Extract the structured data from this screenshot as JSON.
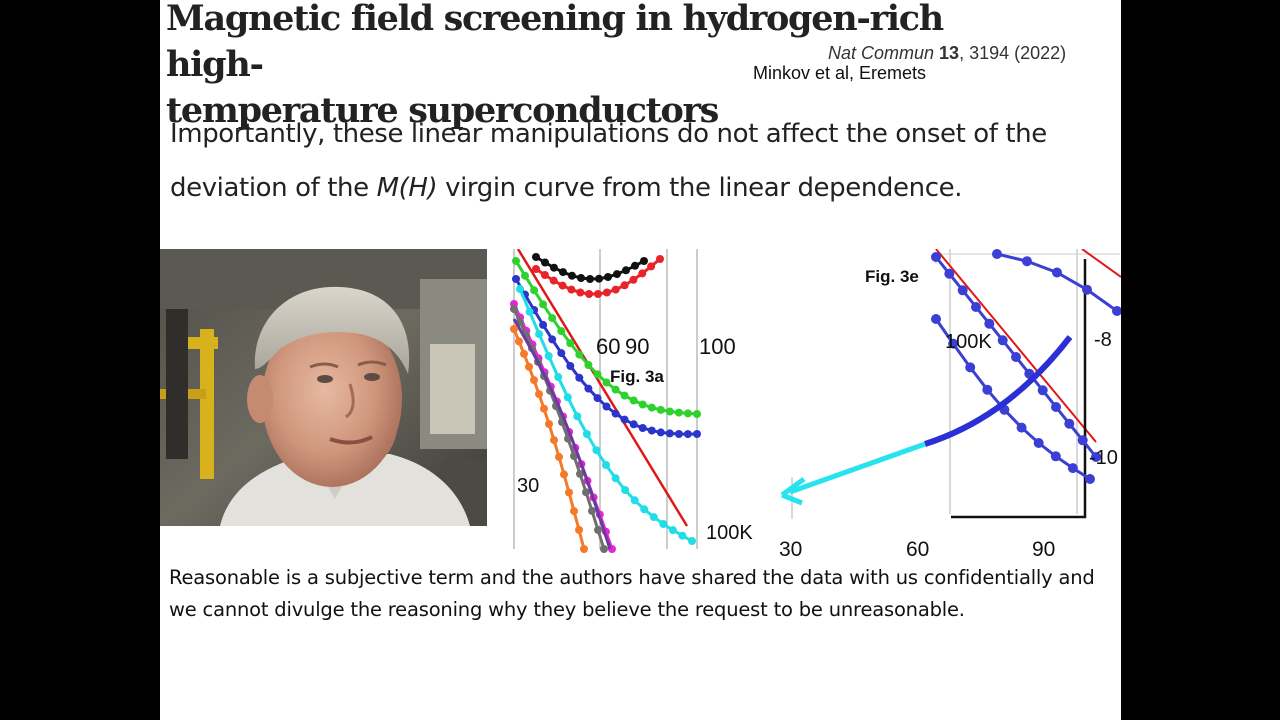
{
  "title": {
    "line1": "Magnetic field screening in hydrogen-rich high-",
    "line2": "temperature superconductors"
  },
  "citation": {
    "journal": "Nat Commun",
    "volume": "13",
    "rest": ", 3194 (2022)",
    "authors": "Minkov et al, Eremets"
  },
  "quote": {
    "part1": "Importantly, these linear manipulations do not affect the onset of the deviation of the ",
    "italic": "M(H)",
    "part2": " virgin curve from the linear dependence."
  },
  "photo": {
    "alt": "Portrait photo of an older man"
  },
  "figures": {
    "left": {
      "label": "Fig. 3a",
      "top_ticks": [
        "60",
        "90",
        "100"
      ],
      "side_label": "30",
      "curve_label": "100K"
    },
    "right": {
      "label": "Fig. 3e",
      "curve_label": "100K",
      "x_ticks": [
        "30",
        "60",
        "90"
      ],
      "y_ticks": [
        "-8",
        "-10"
      ]
    }
  },
  "statement": "Reasonable is a subjective term and the authors have shared the data with us confidentially and we cannot divulge the reasoning why they believe the request to be unreasonable.",
  "colors": {
    "slide_bg": "#ffffff",
    "border_bg": "#000000",
    "fit_line": "#e01818",
    "highlight_arrow": "#27e3ee",
    "highlight_curve": "#2b2fd6"
  }
}
